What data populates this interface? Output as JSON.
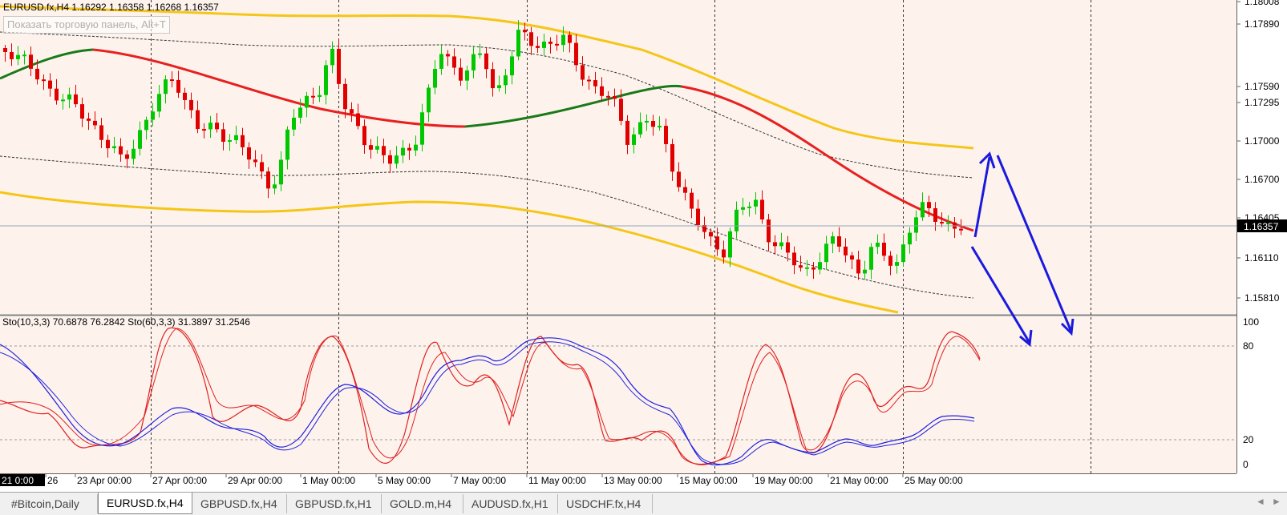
{
  "header": {
    "symbol_line": "EURUSD.fx,H4  1.16292 1.16358 1.16268 1.16357",
    "trade_panel_hint": "Показать торговую панель, Alt+T"
  },
  "price_axis": {
    "labels": [
      "1.18008",
      "1.17890",
      "1.17590",
      "1.17295",
      "1.17000",
      "1.16700",
      "1.16405",
      "1.16110",
      "1.15810"
    ],
    "current_price": "1.16357"
  },
  "oscillator": {
    "label": "Sto(10,3,3) 70.6878 76.2842  Sto(60,3,3) 31.3897 31.2546",
    "levels": [
      "100",
      "80",
      "20",
      "0"
    ]
  },
  "time_axis": {
    "first_label": "21 0:00",
    "labels": [
      "26",
      "23 Apr 00:00",
      "27 Apr 00:00",
      "29 Apr 00:00",
      "1 May 00:00",
      "5 May 00:00",
      "7 May 00:00",
      "11 May 00:00",
      "13 May 00:00",
      "15 May 00:00",
      "19 May 00:00",
      "21 May 00:00",
      "25 May 00:00"
    ]
  },
  "tabs": [
    {
      "label": "#Bitcoin,Daily",
      "active": false
    },
    {
      "label": "EURUSD.fx,H4",
      "active": true
    },
    {
      "label": "GBPUSD.fx,H4",
      "active": false
    },
    {
      "label": "GBPUSD.fx,H1",
      "active": false
    },
    {
      "label": "GOLD.m,H4",
      "active": false
    },
    {
      "label": "AUDUSD.fx,H1",
      "active": false
    },
    {
      "label": "USDCHF.fx,H4",
      "active": false
    }
  ],
  "nav": {
    "left": "◄",
    "right": "►"
  },
  "colors": {
    "chart_background": "#fdf3ec",
    "bull_candle": "#00c800",
    "bear_candle": "#e00000",
    "ma_up": "#1a7a1a",
    "ma_down": "#e82020",
    "envelope": "#f5c518",
    "arrows": "#1a1adf",
    "stoch_fast": "#e02020",
    "stoch_slow": "#2020e0"
  }
}
